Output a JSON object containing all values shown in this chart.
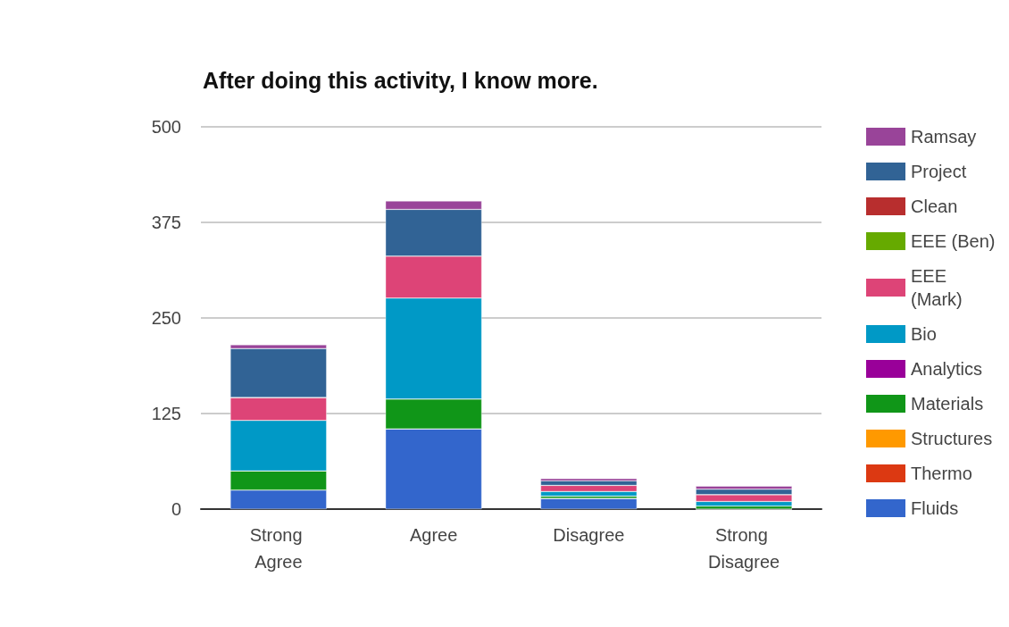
{
  "chart_data": {
    "type": "bar",
    "title": "After doing this activity, I know more.",
    "categories": [
      "Strong Agree",
      "Agree",
      "Disagree",
      "Strong Disagree"
    ],
    "stacked": true,
    "series": [
      {
        "name": "Fluids",
        "color": "#3366cc",
        "values": [
          25,
          105,
          14,
          null
        ]
      },
      {
        "name": "Thermo",
        "color": "#dc3912",
        "values": [
          0,
          0,
          0,
          0
        ]
      },
      {
        "name": "Structures",
        "color": "#ff9900",
        "values": [
          0,
          0,
          0,
          0
        ]
      },
      {
        "name": "Materials",
        "color": "#109618",
        "values": [
          25,
          39,
          3,
          4
        ]
      },
      {
        "name": "Analytics",
        "color": "#990099",
        "values": [
          0,
          0,
          0,
          0
        ]
      },
      {
        "name": "Bio",
        "color": "#0099c6",
        "values": [
          66,
          132,
          6,
          6
        ]
      },
      {
        "name": "EEE (Mark)",
        "color": "#dd4477",
        "values": [
          30,
          55,
          8,
          9
        ]
      },
      {
        "name": "EEE (Ben)",
        "color": "#66aa00",
        "values": [
          0,
          0,
          0,
          0
        ]
      },
      {
        "name": "Clean",
        "color": "#b82e2e",
        "values": [
          0,
          0,
          0,
          0
        ]
      },
      {
        "name": "Project",
        "color": "#316395",
        "values": [
          64,
          61,
          6,
          7
        ]
      },
      {
        "name": "Ramsay",
        "color": "#994499",
        "values": [
          5,
          11,
          3,
          4
        ]
      }
    ],
    "ylim": [
      0,
      500
    ],
    "yticks": [
      0,
      125,
      250,
      375,
      500
    ],
    "grid": "y",
    "legend": "right"
  }
}
